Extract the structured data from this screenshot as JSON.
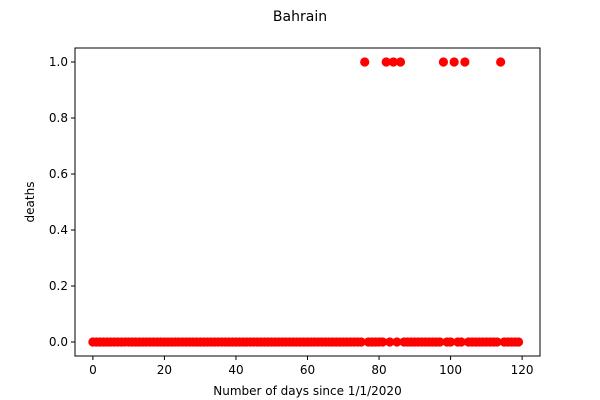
{
  "chart_data": {
    "type": "scatter",
    "title": "Bahrain",
    "xlabel": "Number of days since 1/1/2020",
    "ylabel": "deaths",
    "xlim": [
      -5,
      125
    ],
    "ylim": [
      -0.05,
      1.05
    ],
    "xticks": [
      0,
      20,
      40,
      60,
      80,
      100,
      120
    ],
    "yticks": [
      0.0,
      0.2,
      0.4,
      0.6,
      0.8,
      1.0
    ],
    "xtick_labels": [
      "0",
      "20",
      "40",
      "60",
      "80",
      "100",
      "120"
    ],
    "ytick_labels": [
      "0.0",
      "0.2",
      "0.4",
      "0.6",
      "0.8",
      "1.0"
    ],
    "grid": false,
    "marker_color": "#ff0000",
    "series": [
      {
        "x": [
          0,
          1,
          2,
          3,
          4,
          5,
          6,
          7,
          8,
          9,
          10,
          11,
          12,
          13,
          14,
          15,
          16,
          17,
          18,
          19,
          20,
          21,
          22,
          23,
          24,
          25,
          26,
          27,
          28,
          29,
          30,
          31,
          32,
          33,
          34,
          35,
          36,
          37,
          38,
          39,
          40,
          41,
          42,
          43,
          44,
          45,
          46,
          47,
          48,
          49,
          50,
          51,
          52,
          53,
          54,
          55,
          56,
          57,
          58,
          59,
          60,
          61,
          62,
          63,
          64,
          65,
          66,
          67,
          68,
          69,
          70,
          71,
          72,
          73,
          74,
          75,
          76,
          77,
          78,
          79,
          80,
          81,
          82,
          83,
          84,
          85,
          86,
          87,
          88,
          89,
          90,
          91,
          92,
          93,
          94,
          95,
          96,
          97,
          98,
          99,
          100,
          101,
          102,
          103,
          104,
          105,
          106,
          107,
          108,
          109,
          110,
          111,
          112,
          113,
          114,
          115,
          116,
          117,
          118,
          119
        ],
        "y": [
          0,
          0,
          0,
          0,
          0,
          0,
          0,
          0,
          0,
          0,
          0,
          0,
          0,
          0,
          0,
          0,
          0,
          0,
          0,
          0,
          0,
          0,
          0,
          0,
          0,
          0,
          0,
          0,
          0,
          0,
          0,
          0,
          0,
          0,
          0,
          0,
          0,
          0,
          0,
          0,
          0,
          0,
          0,
          0,
          0,
          0,
          0,
          0,
          0,
          0,
          0,
          0,
          0,
          0,
          0,
          0,
          0,
          0,
          0,
          0,
          0,
          0,
          0,
          0,
          0,
          0,
          0,
          0,
          0,
          0,
          0,
          0,
          0,
          0,
          0,
          0,
          1,
          0,
          0,
          0,
          0,
          0,
          1,
          0,
          1,
          0,
          1,
          0,
          0,
          0,
          0,
          0,
          0,
          0,
          0,
          0,
          0,
          0,
          1,
          0,
          0,
          1,
          0,
          0,
          1,
          0,
          0,
          0,
          0,
          0,
          0,
          0,
          0,
          0,
          1,
          0,
          0,
          0,
          0,
          0
        ]
      }
    ]
  }
}
